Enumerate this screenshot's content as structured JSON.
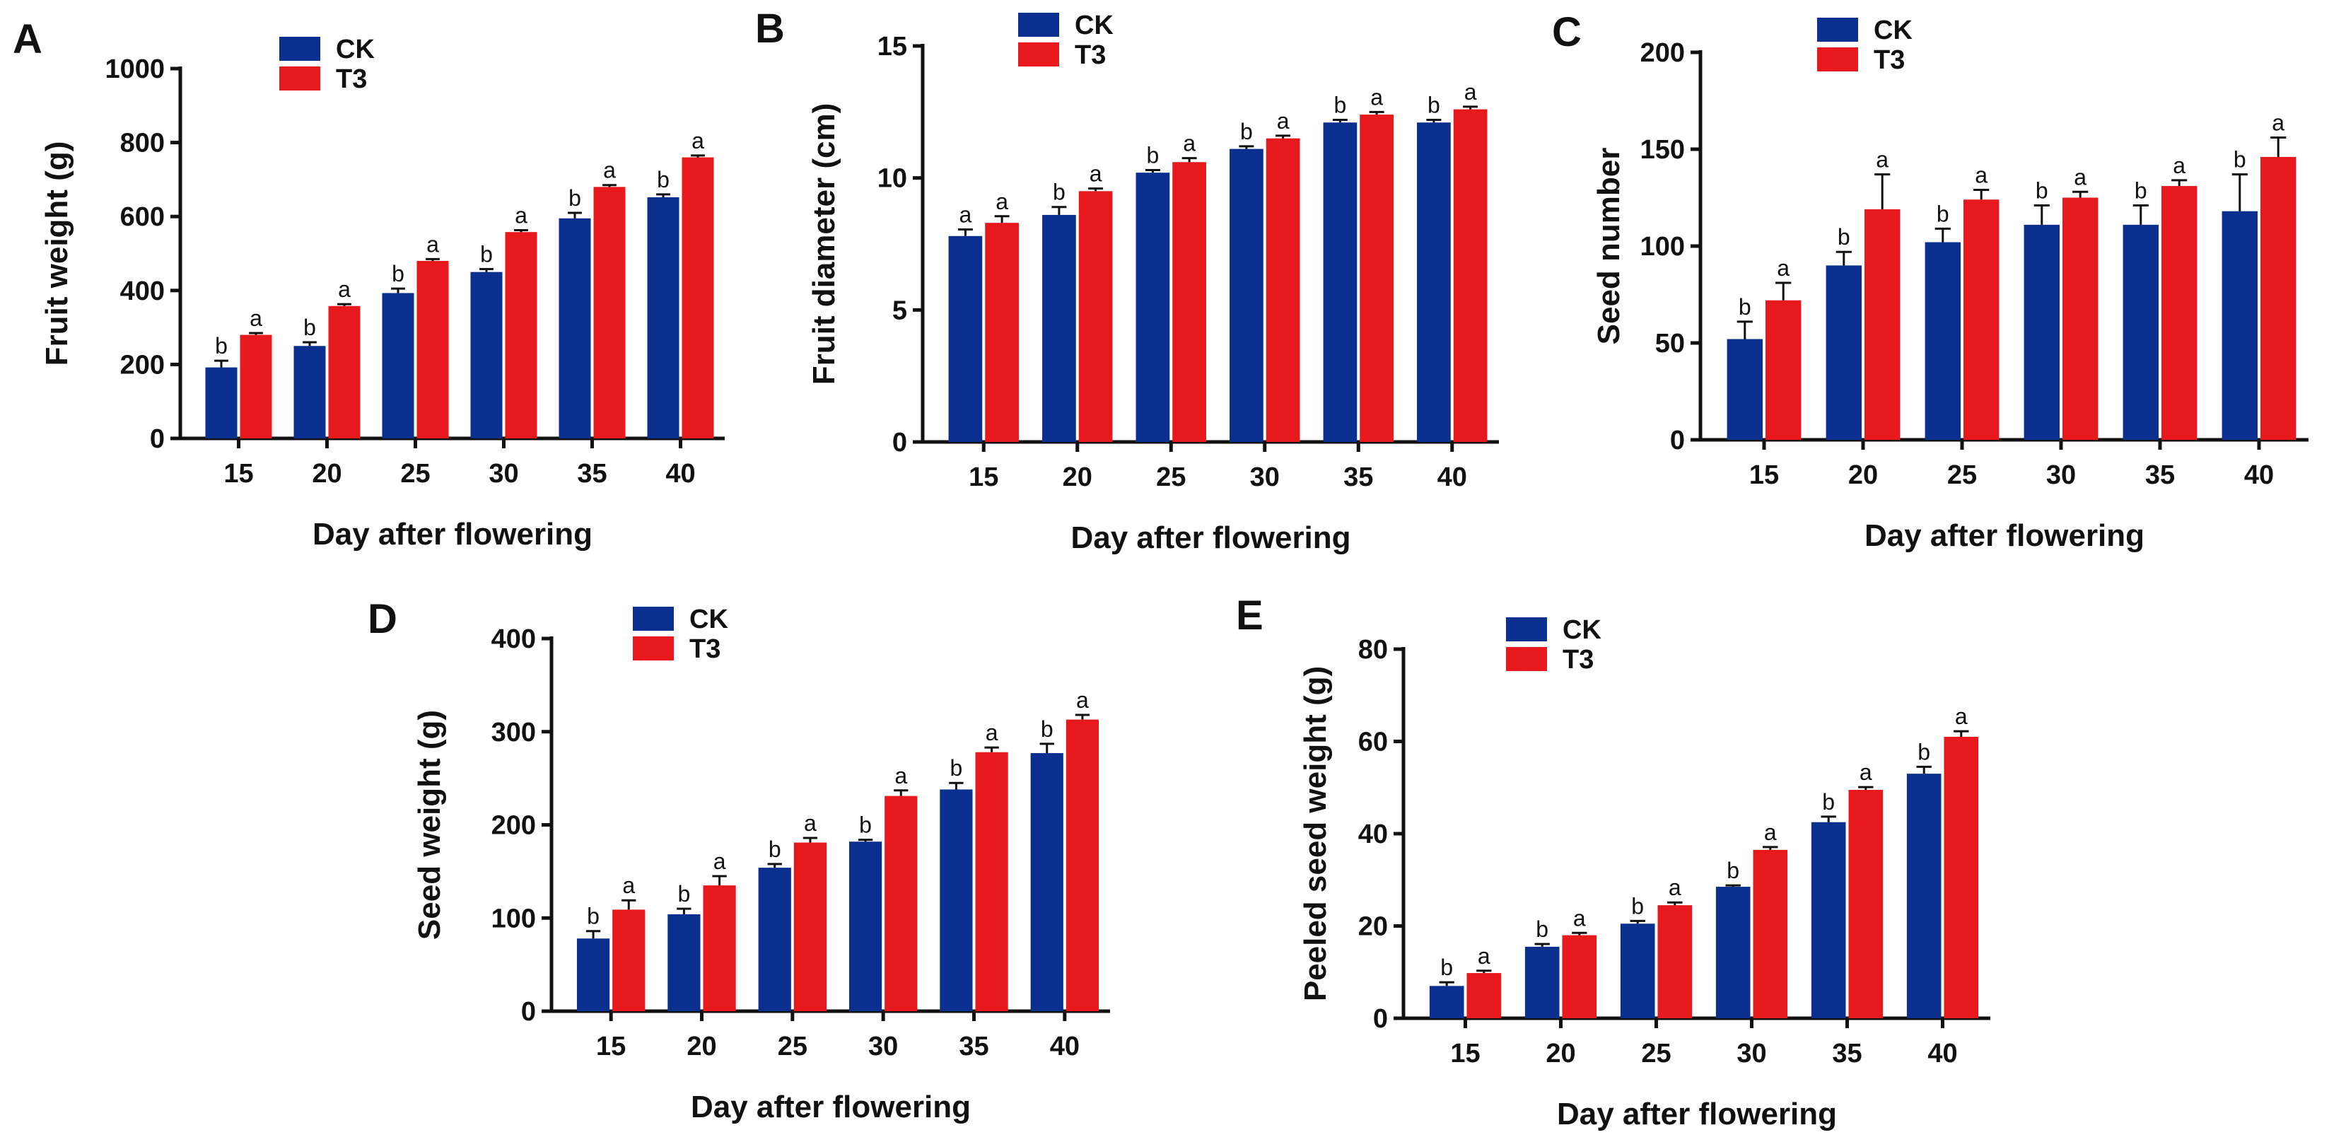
{
  "colors": {
    "CK": "#0a2f8f",
    "T3": "#e8191c"
  },
  "chart_data": [
    {
      "type": "bar",
      "panel": "A",
      "ylabel": "Fruit weight (g)",
      "xlabel": "Day after flowering",
      "ylim": [
        0,
        1000
      ],
      "yticks": [
        0,
        200,
        400,
        600,
        800,
        1000
      ],
      "categories": [
        "15",
        "20",
        "25",
        "30",
        "35",
        "40"
      ],
      "series": [
        {
          "name": "CK",
          "values": [
            192,
            250,
            393,
            450,
            595,
            652
          ],
          "errors": [
            18,
            10,
            12,
            8,
            15,
            8
          ],
          "labels": [
            "b",
            "b",
            "b",
            "b",
            "b",
            "b"
          ]
        },
        {
          "name": "T3",
          "values": [
            280,
            358,
            480,
            558,
            680,
            760
          ],
          "errors": [
            5,
            5,
            5,
            5,
            5,
            5
          ],
          "labels": [
            "a",
            "a",
            "a",
            "a",
            "a",
            "a"
          ]
        }
      ]
    },
    {
      "type": "bar",
      "panel": "B",
      "ylabel": "Fruit diameter (cm)",
      "xlabel": "Day after flowering",
      "ylim": [
        0,
        15
      ],
      "yticks": [
        0,
        5,
        10,
        15
      ],
      "categories": [
        "15",
        "20",
        "25",
        "30",
        "35",
        "40"
      ],
      "series": [
        {
          "name": "CK",
          "values": [
            7.8,
            8.6,
            10.2,
            11.1,
            12.1,
            12.1
          ],
          "errors": [
            0.25,
            0.3,
            0.1,
            0.1,
            0.1,
            0.1
          ],
          "labels": [
            "a",
            "b",
            "b",
            "b",
            "b",
            "b"
          ]
        },
        {
          "name": "T3",
          "values": [
            8.3,
            9.5,
            10.6,
            11.5,
            12.4,
            12.6
          ],
          "errors": [
            0.25,
            0.1,
            0.15,
            0.1,
            0.1,
            0.1
          ],
          "labels": [
            "a",
            "a",
            "a",
            "a",
            "a",
            "a"
          ]
        }
      ]
    },
    {
      "type": "bar",
      "panel": "C",
      "ylabel": "Seed number",
      "xlabel": "Day after flowering",
      "ylim": [
        0,
        200
      ],
      "yticks": [
        0,
        50,
        100,
        150,
        200
      ],
      "categories": [
        "15",
        "20",
        "25",
        "30",
        "35",
        "40"
      ],
      "series": [
        {
          "name": "CK",
          "values": [
            52,
            90,
            102,
            111,
            111,
            118
          ],
          "errors": [
            9,
            7,
            7,
            10,
            10,
            19
          ],
          "labels": [
            "b",
            "b",
            "b",
            "b",
            "b",
            "b"
          ]
        },
        {
          "name": "T3",
          "values": [
            72,
            119,
            124,
            125,
            131,
            146
          ],
          "errors": [
            9,
            18,
            5,
            3,
            3,
            10
          ],
          "labels": [
            "a",
            "a",
            "a",
            "a",
            "a",
            "a"
          ]
        }
      ]
    },
    {
      "type": "bar",
      "panel": "D",
      "ylabel": "Seed weight (g)",
      "xlabel": "Day after flowering",
      "ylim": [
        0,
        400
      ],
      "yticks": [
        0,
        100,
        200,
        300,
        400
      ],
      "categories": [
        "15",
        "20",
        "25",
        "30",
        "35",
        "40"
      ],
      "series": [
        {
          "name": "CK",
          "values": [
            78,
            104,
            154,
            182,
            238,
            277
          ],
          "errors": [
            8,
            6,
            4,
            2,
            7,
            10
          ],
          "labels": [
            "b",
            "b",
            "b",
            "b",
            "b",
            "b"
          ]
        },
        {
          "name": "T3",
          "values": [
            109,
            135,
            181,
            231,
            278,
            313
          ],
          "errors": [
            10,
            10,
            5,
            6,
            5,
            5
          ],
          "labels": [
            "a",
            "a",
            "a",
            "a",
            "a",
            "a"
          ]
        }
      ]
    },
    {
      "type": "bar",
      "panel": "E",
      "ylabel": "Peeled seed weight (g)",
      "xlabel": "Day after flowering",
      "ylim": [
        0,
        80
      ],
      "yticks": [
        0,
        20,
        40,
        60,
        80
      ],
      "categories": [
        "15",
        "20",
        "25",
        "30",
        "35",
        "40"
      ],
      "series": [
        {
          "name": "CK",
          "values": [
            7,
            15.5,
            20.5,
            28.5,
            42.5,
            53
          ],
          "errors": [
            0.8,
            0.6,
            0.6,
            0.3,
            1.2,
            1.5
          ],
          "labels": [
            "b",
            "b",
            "b",
            "b",
            "b",
            "b"
          ]
        },
        {
          "name": "T3",
          "values": [
            9.8,
            18,
            24.5,
            36.5,
            49.5,
            61
          ],
          "errors": [
            0.5,
            0.5,
            0.6,
            0.6,
            0.6,
            1.2
          ],
          "labels": [
            "a",
            "a",
            "a",
            "a",
            "a",
            "a"
          ]
        }
      ]
    }
  ]
}
